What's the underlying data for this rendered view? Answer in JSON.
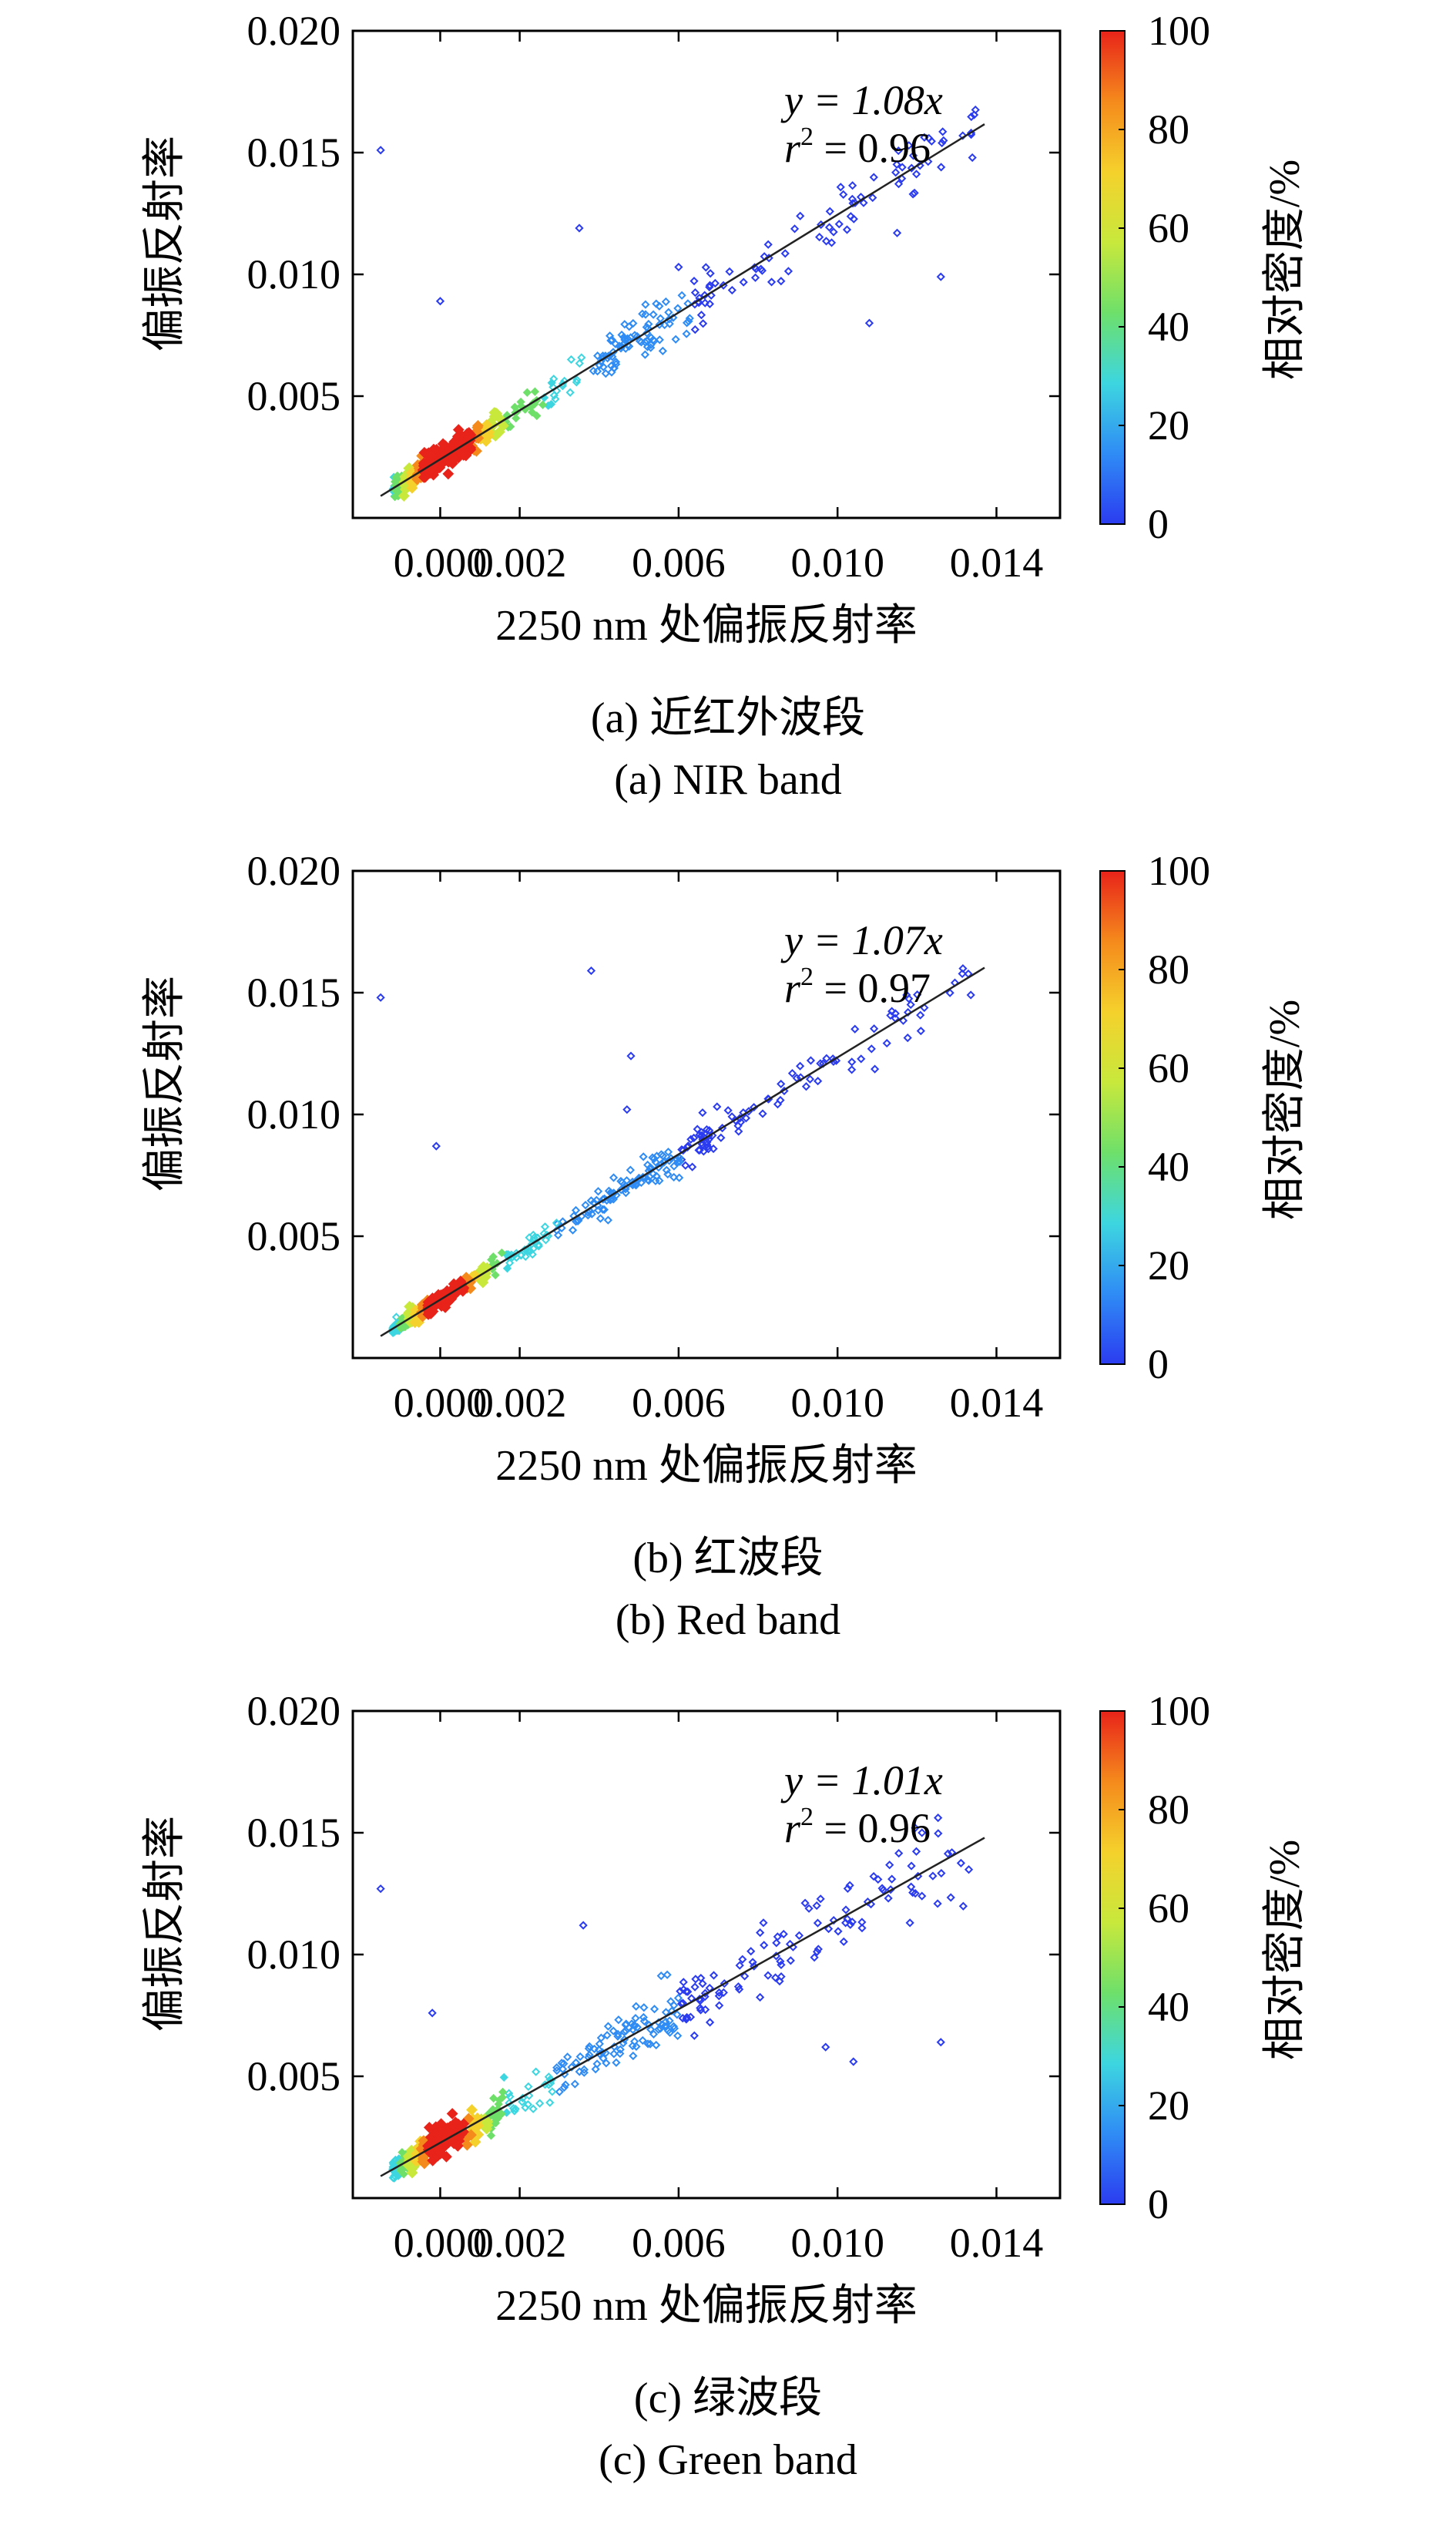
{
  "colorbar": {
    "label": "相对密度/%",
    "ticks": [
      "0",
      "20",
      "40",
      "60",
      "80",
      "100"
    ],
    "colors": [
      "#2b3cf0",
      "#2f8cf5",
      "#3dd6e0",
      "#6ee06a",
      "#c8e83c",
      "#f5d12c",
      "#f58a1c",
      "#e8231a"
    ]
  },
  "chart_data": [
    {
      "type": "scatter",
      "caption_cn": "(a) 近红外波段",
      "caption_en": "(a) NIR band",
      "xlabel": "2250 nm 处偏振反射率",
      "ylabel": "偏振反射率",
      "x_ticks": [
        "0.000",
        "0.002",
        "0.006",
        "0.010",
        "0.014"
      ],
      "y_ticks": [
        "0.005",
        "0.010",
        "0.015",
        "0.020"
      ],
      "xlim": [
        -0.0022,
        0.0156
      ],
      "ylim": [
        0.0,
        0.02
      ],
      "fit": {
        "slope": 1.08,
        "r2": 0.96,
        "eq_prefix": "y = 1.08",
        "eq_var": "x",
        "r_symbol": "r",
        "r_exp": "2",
        "r_value": " = 0.96"
      },
      "scatter_spread": 0.00055,
      "outliers": [
        [
          -0.0015,
          0.0151
        ],
        [
          0.0,
          0.0089
        ],
        [
          0.0035,
          0.0119
        ],
        [
          0.006,
          0.0103
        ],
        [
          0.0108,
          0.008
        ],
        [
          0.0126,
          0.0099
        ],
        [
          0.0115,
          0.0117
        ]
      ]
    },
    {
      "type": "scatter",
      "caption_cn": "(b) 红波段",
      "caption_en": "(b) Red band",
      "xlabel": "2250 nm 处偏振反射率",
      "ylabel": "偏振反射率",
      "x_ticks": [
        "0.000",
        "0.002",
        "0.006",
        "0.010",
        "0.014"
      ],
      "y_ticks": [
        "0.005",
        "0.010",
        "0.015",
        "0.020"
      ],
      "xlim": [
        -0.0022,
        0.0156
      ],
      "ylim": [
        0.0,
        0.02
      ],
      "fit": {
        "slope": 1.07,
        "r2": 0.97,
        "eq_prefix": "y = 1.07",
        "eq_var": "x",
        "r_symbol": "r",
        "r_exp": "2",
        "r_value": " = 0.97"
      },
      "scatter_spread": 0.00035,
      "outliers": [
        [
          -0.0015,
          0.0148
        ],
        [
          -0.0001,
          0.0087
        ],
        [
          0.0038,
          0.0159
        ],
        [
          0.0048,
          0.0124
        ],
        [
          0.0047,
          0.0102
        ]
      ]
    },
    {
      "type": "scatter",
      "caption_cn": "(c) 绿波段",
      "caption_en": "(c) Green band",
      "xlabel": "2250 nm 处偏振反射率",
      "ylabel": "偏振反射率",
      "x_ticks": [
        "0.000",
        "0.002",
        "0.006",
        "0.010",
        "0.014"
      ],
      "y_ticks": [
        "0.005",
        "0.010",
        "0.015",
        "0.020"
      ],
      "xlim": [
        -0.0022,
        0.0156
      ],
      "ylim": [
        0.0,
        0.02
      ],
      "fit": {
        "slope": 1.01,
        "r2": 0.96,
        "eq_prefix": "y = 1.01",
        "eq_var": "x",
        "r_symbol": "r",
        "r_exp": "2",
        "r_value": " = 0.96"
      },
      "scatter_spread": 0.0006,
      "outliers": [
        [
          -0.0015,
          0.0127
        ],
        [
          -0.0002,
          0.0076
        ],
        [
          0.0036,
          0.0112
        ],
        [
          0.0097,
          0.0062
        ],
        [
          0.0104,
          0.0056
        ],
        [
          0.0126,
          0.0064
        ]
      ]
    }
  ]
}
